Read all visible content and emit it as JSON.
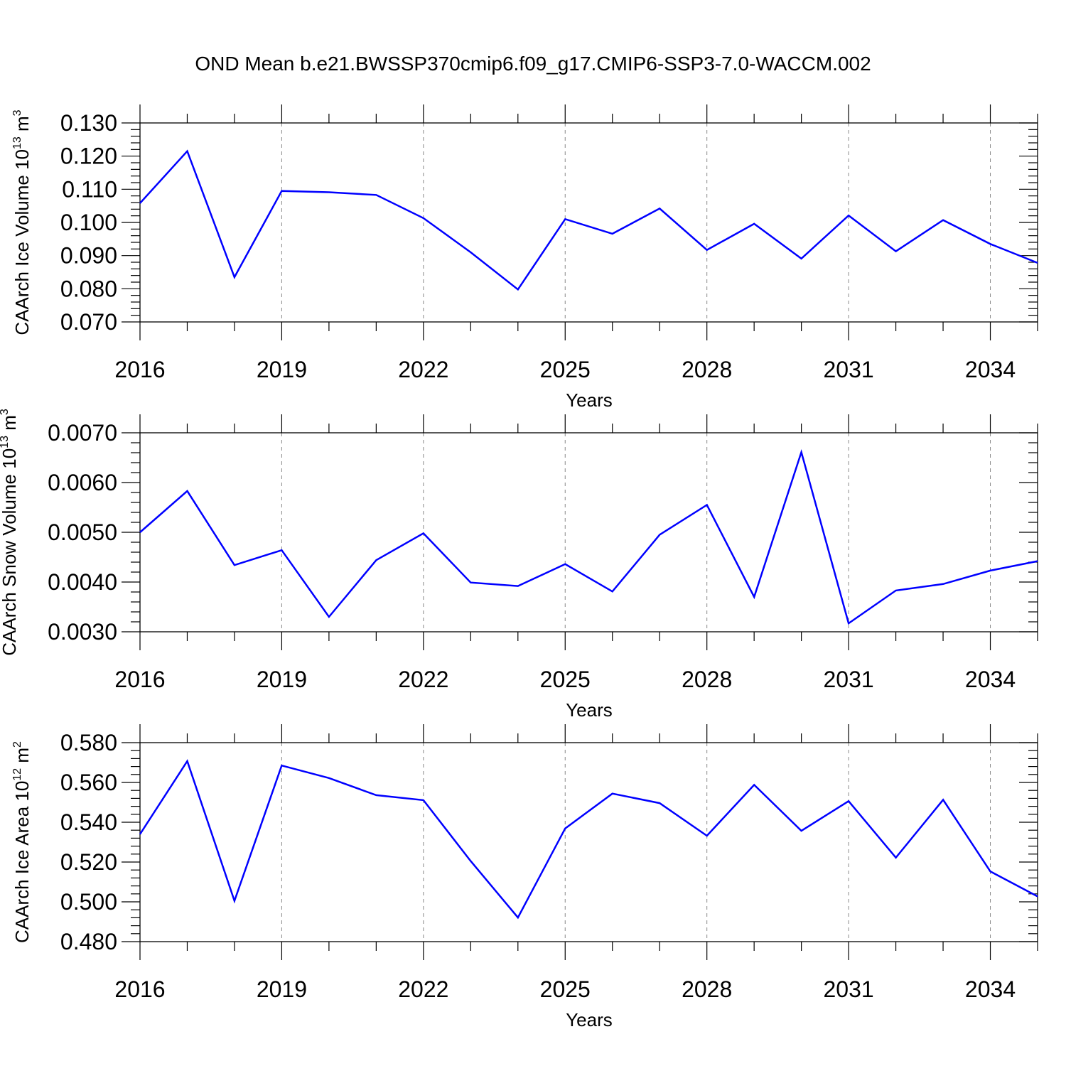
{
  "figure": {
    "title": "OND Mean b.e21.BWSSP370cmip6.f09_g17.CMIP6-SSP3-7.0-WACCM.002"
  },
  "chart_data": [
    {
      "type": "line",
      "ylabel_main": "CAArch Ice Volume 10",
      "ylabel_exp": "13",
      "ylabel_unit": " m",
      "ylabel_unit_exp": "3",
      "xlabel": "Years",
      "x": [
        2016,
        2017,
        2018,
        2019,
        2020,
        2021,
        2022,
        2023,
        2024,
        2025,
        2026,
        2027,
        2028,
        2029,
        2030,
        2031,
        2032,
        2033,
        2034,
        2035
      ],
      "series": [
        {
          "color": "#0000ff",
          "values": [
            0.1058,
            0.1215,
            0.0835,
            0.1095,
            0.1091,
            0.1083,
            0.1013,
            0.091,
            0.0798,
            0.101,
            0.0966,
            0.1042,
            0.0917,
            0.0996,
            0.0891,
            0.1021,
            0.0913,
            0.1007,
            0.0935,
            0.0878
          ]
        }
      ],
      "xlim": [
        2016,
        2035
      ],
      "ylim": [
        0.07,
        0.13
      ],
      "yticks": [
        "0.070",
        "0.080",
        "0.090",
        "0.100",
        "0.110",
        "0.120",
        "0.130"
      ],
      "xticks": [
        "2016",
        "2019",
        "2022",
        "2025",
        "2028",
        "2031",
        "2034"
      ],
      "grid": "vertical dashed at major x ticks"
    },
    {
      "type": "line",
      "ylabel_main": "CAArch Snow Volume 10",
      "ylabel_exp": "13",
      "ylabel_unit": " m",
      "ylabel_unit_exp": "3",
      "xlabel": "Years",
      "x": [
        2016,
        2017,
        2018,
        2019,
        2020,
        2021,
        2022,
        2023,
        2024,
        2025,
        2026,
        2027,
        2028,
        2029,
        2030,
        2031,
        2032,
        2033,
        2034,
        2035
      ],
      "series": [
        {
          "color": "#0000ff",
          "values": [
            0.005,
            0.00583,
            0.00434,
            0.00464,
            0.0033,
            0.00444,
            0.00498,
            0.00399,
            0.00392,
            0.00436,
            0.00381,
            0.00495,
            0.00555,
            0.0037,
            0.00661,
            0.00317,
            0.00383,
            0.00396,
            0.00423,
            0.00442
          ]
        }
      ],
      "xlim": [
        2016,
        2035
      ],
      "ylim": [
        0.003,
        0.007
      ],
      "yticks": [
        "0.0030",
        "0.0040",
        "0.0050",
        "0.0060",
        "0.0070"
      ],
      "xticks": [
        "2016",
        "2019",
        "2022",
        "2025",
        "2028",
        "2031",
        "2034"
      ],
      "grid": "vertical dashed at major x ticks"
    },
    {
      "type": "line",
      "ylabel_main": "CAArch Ice Area 10",
      "ylabel_exp": "12",
      "ylabel_unit": " m",
      "ylabel_unit_exp": "2",
      "xlabel": "Years",
      "x": [
        2016,
        2017,
        2018,
        2019,
        2020,
        2021,
        2022,
        2023,
        2024,
        2025,
        2026,
        2027,
        2028,
        2029,
        2030,
        2031,
        2032,
        2033,
        2034,
        2035
      ],
      "series": [
        {
          "color": "#0000ff",
          "values": [
            0.534,
            0.5707,
            0.5005,
            0.5685,
            0.5622,
            0.5536,
            0.5511,
            0.5205,
            0.4921,
            0.5369,
            0.5544,
            0.5496,
            0.5332,
            0.5588,
            0.5357,
            0.5506,
            0.5222,
            0.5513,
            0.5153,
            0.5027
          ]
        }
      ],
      "xlim": [
        2016,
        2035
      ],
      "ylim": [
        0.48,
        0.58
      ],
      "yticks": [
        "0.480",
        "0.500",
        "0.520",
        "0.540",
        "0.560",
        "0.580"
      ],
      "xticks": [
        "2016",
        "2019",
        "2022",
        "2025",
        "2028",
        "2031",
        "2034"
      ],
      "grid": "vertical dashed at major x ticks"
    }
  ]
}
